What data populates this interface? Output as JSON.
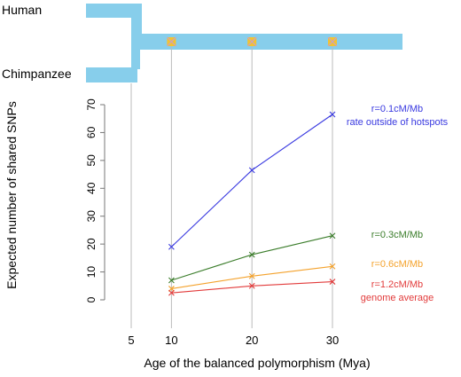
{
  "tree": {
    "human_label": "Human",
    "chimp_label": "Chimpanzee",
    "branch_color": "#87CEEB",
    "marker_color": "#F2C232",
    "marker_cross_color": "#C8A2C8",
    "marker_positions_mya": [
      10,
      20,
      30
    ]
  },
  "chart_data": {
    "type": "line",
    "title": "",
    "xlabel": "Age of the balanced polymorphism (Mya)",
    "ylabel": "Expected number of shared SNPs",
    "x": [
      10,
      20,
      30
    ],
    "x_ticks": [
      5,
      10,
      20,
      30
    ],
    "xlim": [
      5,
      30
    ],
    "y_ticks": [
      0,
      10,
      20,
      30,
      40,
      50,
      60,
      70
    ],
    "ylim": [
      0,
      70
    ],
    "grid": "vertical lines at x = 5, 10, 20, 30",
    "legend": "inline labels at right end of each series",
    "series": [
      {
        "name": "r=0.1cM/Mb",
        "annotation": "rate outside of hotspots",
        "values": [
          19,
          46.5,
          66.5
        ],
        "color": "#3a3ae0"
      },
      {
        "name": "r=0.3cM/Mb",
        "annotation": "",
        "values": [
          7,
          16.2,
          23
        ],
        "color": "#3b7d2b"
      },
      {
        "name": "r=0.6cM/Mb",
        "annotation": "",
        "values": [
          4,
          8.5,
          12
        ],
        "color": "#f4a22c"
      },
      {
        "name": "r=1.2cM/Mb",
        "annotation": "genome average",
        "values": [
          2.5,
          5,
          6.5
        ],
        "color": "#e23b3b"
      }
    ]
  }
}
